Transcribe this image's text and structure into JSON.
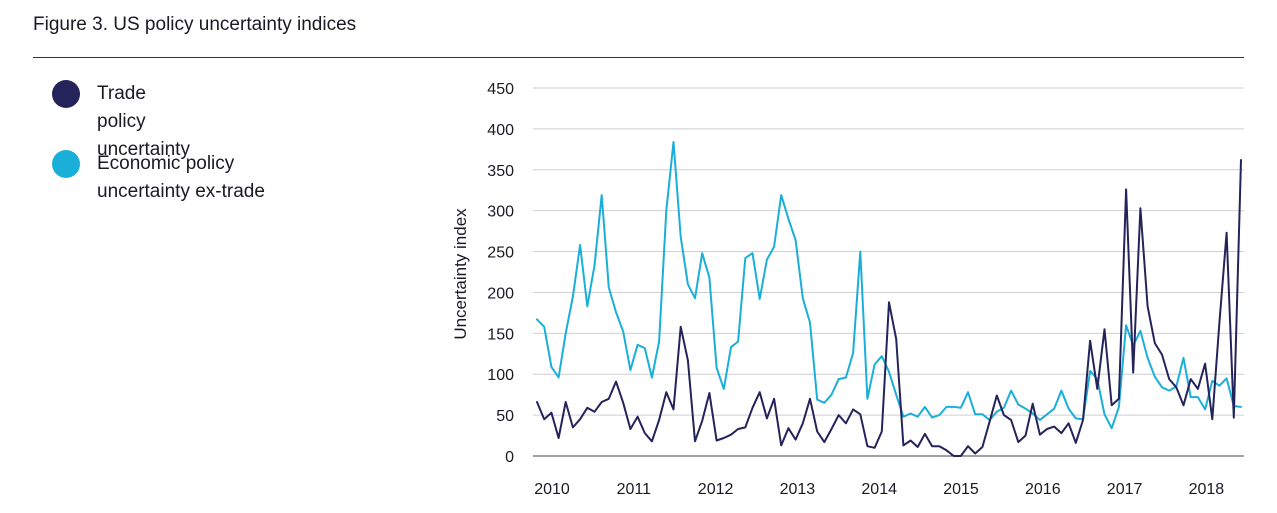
{
  "title": "Figure 3. US policy uncertainty indices",
  "chart_data": {
    "type": "line",
    "title": "Figure 3. US policy uncertainty indices",
    "ylabel": "Uncertainty index",
    "xlabel": "",
    "ylim": [
      0,
      450
    ],
    "yticks": [
      "0",
      "50",
      "100",
      "150",
      "200",
      "250",
      "300",
      "350",
      "400",
      "450"
    ],
    "xticks": [
      "2010",
      "2011",
      "2012",
      "2013",
      "2014",
      "2015",
      "2016",
      "2017",
      "2018"
    ],
    "grid": "horizontal",
    "legend_position": "left",
    "series": [
      {
        "name": "Trade policy uncertainty",
        "color": "#24235a",
        "values": [
          66,
          45,
          53,
          22,
          66,
          35,
          45,
          59,
          54,
          66,
          70,
          91,
          65,
          33,
          48,
          28,
          18,
          44,
          78,
          57,
          158,
          117,
          18,
          43,
          77,
          19,
          22,
          26,
          33,
          35,
          59,
          78,
          46,
          70,
          13,
          34,
          20,
          40,
          70,
          30,
          17,
          33,
          50,
          40,
          57,
          51,
          12,
          10,
          30,
          188,
          143,
          13,
          19,
          11,
          27,
          12,
          12,
          7,
          0,
          0,
          12,
          3,
          11,
          42,
          74,
          50,
          44,
          17,
          25,
          64,
          26,
          33,
          36,
          28,
          40,
          16,
          44,
          141,
          82,
          155,
          62,
          70,
          326,
          102,
          303,
          183,
          138,
          124,
          94,
          84,
          62,
          94,
          82,
          113,
          45,
          163,
          273,
          47,
          362
        ],
        "line": true
      },
      {
        "name": "Economic policy uncertainty ex-trade",
        "color": "#1aafd9",
        "values": [
          167,
          158,
          109,
          96,
          150,
          195,
          258,
          183,
          233,
          319,
          206,
          176,
          152,
          105,
          136,
          132,
          96,
          140,
          300,
          384,
          268,
          210,
          193,
          248,
          218,
          108,
          82,
          133,
          140,
          242,
          248,
          192,
          240,
          256,
          319,
          290,
          264,
          193,
          163,
          69,
          65,
          75,
          94,
          96,
          126,
          250,
          70,
          112,
          122,
          103,
          75,
          48,
          52,
          48,
          60,
          47,
          50,
          60,
          60,
          59,
          78,
          51,
          51,
          44,
          54,
          59,
          80,
          63,
          58,
          52,
          44,
          51,
          58,
          80,
          58,
          46,
          45,
          104,
          94,
          51,
          34,
          60,
          160,
          135,
          153,
          120,
          97,
          84,
          80,
          85,
          120,
          72,
          72,
          57,
          92,
          86,
          95,
          61,
          60
        ],
        "line": true
      }
    ]
  }
}
